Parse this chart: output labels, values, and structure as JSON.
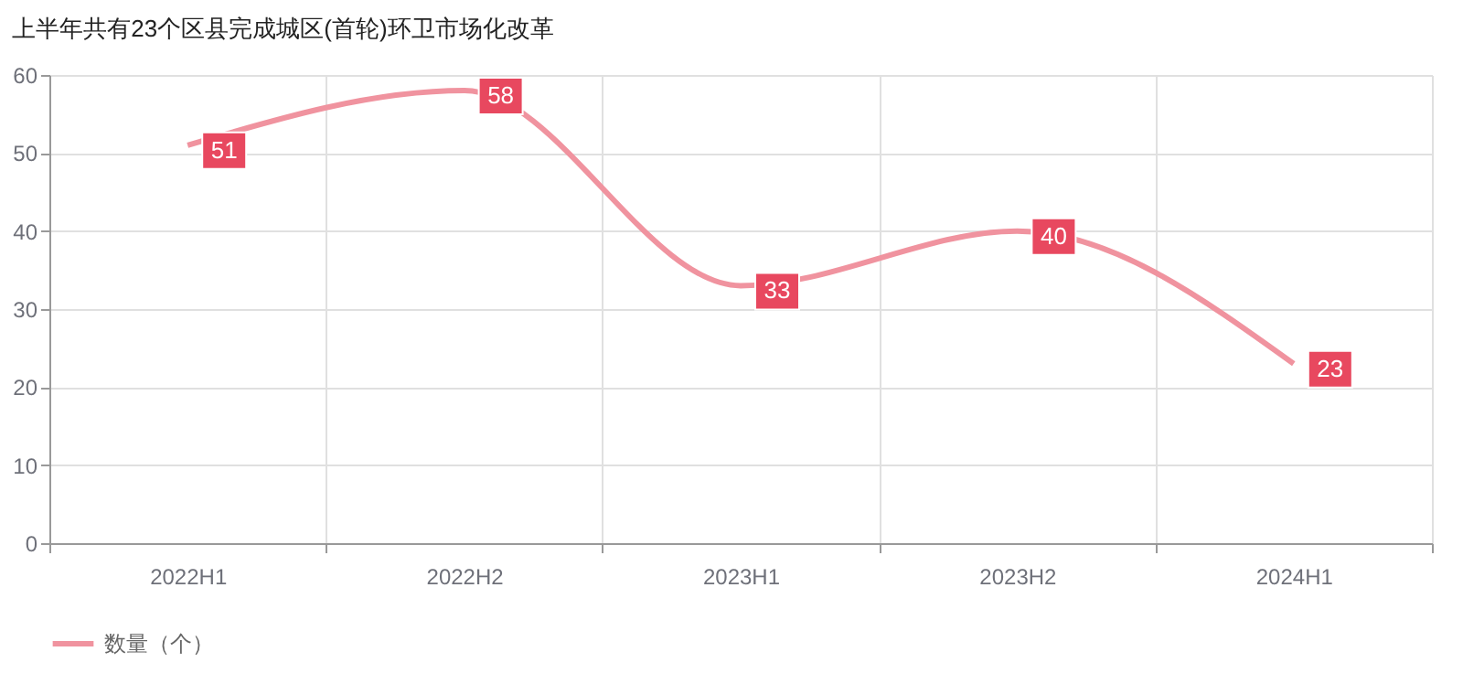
{
  "chart_data": {
    "type": "line",
    "title": "上半年共有23个区县完成城区(首轮)环卫市场化改革",
    "categories": [
      "2022H1",
      "2022H2",
      "2023H1",
      "2023H2",
      "2024H1"
    ],
    "series": [
      {
        "name": "数量（个）",
        "color": "#f0939f",
        "values": [
          51,
          58,
          33,
          40,
          23
        ]
      }
    ],
    "ylim": [
      0,
      60
    ],
    "yticks": [
      0,
      10,
      20,
      30,
      40,
      50,
      60
    ],
    "grid": true,
    "legend": "bottom",
    "marker": "none",
    "line_style": "solid",
    "data_labels": true
  }
}
